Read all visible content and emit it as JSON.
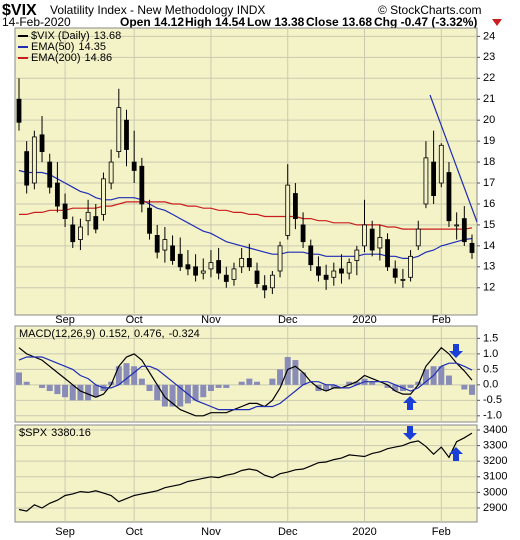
{
  "header": {
    "symbol": "$VIX",
    "name": "Volatility Index - New Methodology INDX",
    "date": "14-Feb-2020",
    "stats": [
      "Open 14.12",
      "High 14.54",
      "Low 13.38",
      "Close 13.68",
      "Chg -0.47 (-3.32%)"
    ],
    "credit": "© StockCharts.com"
  },
  "chart_data": [
    {
      "type": "candlestick",
      "legend": "upper left",
      "grid": true,
      "categories": [
        null,
        null,
        null,
        null,
        null,
        null,
        "Sep",
        null,
        null,
        null,
        null,
        null,
        null,
        null,
        null,
        "Oct",
        null,
        null,
        null,
        null,
        null,
        null,
        null,
        null,
        null,
        "Nov",
        null,
        null,
        null,
        null,
        null,
        null,
        null,
        null,
        null,
        "Dec",
        null,
        null,
        null,
        null,
        null,
        null,
        null,
        null,
        null,
        "2020",
        null,
        null,
        null,
        null,
        null,
        null,
        null,
        null,
        null,
        "Feb",
        null,
        null,
        null,
        null
      ],
      "name": "$VIX (Daily)",
      "legend_label": "13.68",
      "color": "#000000",
      "open": [
        21.0,
        18.5,
        17.0,
        19.3,
        18.0,
        17.0,
        16.0,
        15.0,
        14.3,
        15.2,
        15.4,
        15.5,
        17.0,
        18.5,
        20.0,
        18.0,
        17.8,
        15.8,
        14.5,
        13.8,
        14.0,
        13.6,
        13.1,
        13.0,
        12.7,
        12.9,
        13.3,
        12.6,
        12.4,
        13.0,
        13.4,
        12.8,
        12.1,
        12.0,
        12.8,
        14.5,
        16.5,
        15.0,
        14.0,
        13.0,
        12.6,
        12.5,
        12.9,
        12.7,
        13.3,
        14.0,
        14.8,
        13.9,
        14.3,
        12.9,
        12.4,
        12.5,
        14.0,
        16.0,
        18.0,
        17.0,
        17.5,
        15.0,
        15.3,
        14.12
      ],
      "high": [
        22.0,
        19.0,
        19.5,
        20.2,
        18.4,
        18.0,
        16.5,
        15.4,
        15.3,
        16.2,
        16.0,
        17.5,
        18.6,
        21.5,
        20.5,
        19.5,
        18.2,
        16.2,
        15.0,
        14.9,
        14.5,
        14.4,
        13.8,
        13.6,
        13.4,
        13.8,
        13.9,
        13.0,
        13.2,
        13.9,
        14.1,
        13.2,
        12.6,
        12.8,
        14.2,
        17.9,
        17.0,
        15.6,
        14.3,
        13.5,
        13.1,
        13.2,
        13.6,
        13.4,
        14.0,
        16.2,
        15.2,
        15.0,
        14.6,
        13.3,
        12.9,
        13.8,
        15.2,
        19.0,
        19.5,
        18.9,
        18.0,
        15.6,
        15.9,
        14.54
      ],
      "low": [
        19.5,
        16.5,
        16.7,
        18.0,
        16.5,
        15.6,
        14.9,
        13.9,
        13.8,
        14.5,
        14.6,
        15.2,
        16.7,
        18.2,
        17.8,
        17.0,
        15.6,
        14.3,
        13.4,
        13.2,
        13.1,
        12.8,
        12.6,
        12.3,
        12.4,
        12.5,
        12.4,
        12.0,
        12.1,
        12.7,
        12.8,
        12.0,
        11.5,
        11.7,
        12.5,
        14.3,
        14.8,
        13.9,
        12.8,
        12.3,
        11.9,
        12.1,
        12.2,
        12.4,
        12.6,
        13.7,
        13.5,
        13.3,
        12.8,
        12.2,
        12.0,
        12.3,
        13.8,
        15.8,
        16.0,
        16.8,
        14.9,
        14.3,
        14.0,
        13.38
      ],
      "close": [
        19.9,
        16.9,
        19.2,
        18.5,
        16.8,
        15.9,
        15.3,
        14.2,
        14.9,
        15.6,
        14.8,
        17.2,
        18.0,
        20.6,
        18.6,
        17.6,
        16.0,
        14.6,
        13.7,
        14.3,
        13.3,
        13.0,
        12.9,
        12.6,
        12.8,
        13.2,
        12.7,
        12.3,
        12.9,
        13.4,
        13.0,
        12.2,
        11.9,
        12.6,
        14.0,
        16.9,
        15.3,
        14.2,
        13.1,
        12.6,
        12.4,
        12.8,
        12.7,
        13.2,
        13.8,
        15.0,
        13.8,
        14.4,
        13.0,
        12.5,
        12.4,
        13.5,
        14.8,
        18.2,
        16.4,
        18.8,
        15.2,
        15.0,
        14.2,
        13.68
      ],
      "series": [
        {
          "name": "EMA(50)",
          "legend_label": "14.35",
          "color": "#1f2db4",
          "values": [
            17.6,
            17.5,
            17.5,
            17.5,
            17.4,
            17.2,
            17.0,
            16.8,
            16.6,
            16.5,
            16.3,
            16.2,
            16.2,
            16.3,
            16.3,
            16.3,
            16.2,
            16.0,
            15.8,
            15.7,
            15.5,
            15.3,
            15.1,
            14.9,
            14.7,
            14.6,
            14.4,
            14.2,
            14.1,
            14.0,
            13.9,
            13.8,
            13.7,
            13.6,
            13.6,
            13.7,
            13.7,
            13.7,
            13.6,
            13.6,
            13.5,
            13.5,
            13.5,
            13.5,
            13.5,
            13.6,
            13.6,
            13.6,
            13.5,
            13.5,
            13.4,
            13.4,
            13.5,
            13.7,
            13.8,
            14.0,
            14.1,
            14.2,
            14.3,
            14.35
          ]
        },
        {
          "name": "EMA(200)",
          "legend_label": "14.86",
          "color": "#c81e1e",
          "values": [
            15.5,
            15.5,
            15.6,
            15.6,
            15.7,
            15.7,
            15.7,
            15.8,
            15.8,
            15.8,
            15.8,
            15.9,
            15.9,
            16.0,
            16.1,
            16.1,
            16.1,
            16.1,
            16.1,
            16.1,
            16.0,
            16.0,
            15.9,
            15.9,
            15.8,
            15.8,
            15.7,
            15.7,
            15.6,
            15.6,
            15.5,
            15.5,
            15.4,
            15.4,
            15.4,
            15.4,
            15.4,
            15.3,
            15.3,
            15.2,
            15.2,
            15.1,
            15.1,
            15.1,
            15.0,
            15.0,
            15.0,
            15.0,
            14.9,
            14.9,
            14.8,
            14.8,
            14.8,
            14.8,
            14.8,
            14.8,
            14.8,
            14.8,
            14.8,
            14.86
          ]
        }
      ],
      "ylim": [
        10.7,
        24.4
      ],
      "yticks": [
        12,
        13,
        14,
        15,
        16,
        17,
        18,
        19,
        20,
        21,
        22,
        23,
        24
      ]
    },
    {
      "type": "line",
      "label": "MACD(12,26,9)",
      "grid": true,
      "series": [
        {
          "name": "MACD",
          "legend_label": "0.152,",
          "style": "line",
          "color": "#000000",
          "values": [
            1.2,
            1.0,
            0.9,
            0.8,
            0.6,
            0.4,
            0.2,
            0.0,
            -0.2,
            -0.3,
            -0.4,
            -0.3,
            0.0,
            0.6,
            0.9,
            1.0,
            0.8,
            0.4,
            0.0,
            -0.4,
            -0.6,
            -0.8,
            -0.9,
            -1.0,
            -1.0,
            -0.9,
            -0.9,
            -0.9,
            -0.8,
            -0.7,
            -0.6,
            -0.6,
            -0.7,
            -0.5,
            -0.1,
            0.5,
            0.6,
            0.4,
            0.1,
            -0.1,
            -0.2,
            -0.1,
            -0.1,
            0.0,
            0.1,
            0.3,
            0.2,
            0.1,
            0.0,
            -0.2,
            -0.3,
            -0.3,
            0.0,
            0.6,
            0.9,
            1.2,
            1.0,
            0.7,
            0.45,
            0.152
          ]
        },
        {
          "name": "Signal",
          "legend_label": "0.476,",
          "style": "line",
          "color": "#1f2db4",
          "values": [
            0.8,
            0.9,
            0.9,
            0.9,
            0.8,
            0.7,
            0.6,
            0.5,
            0.3,
            0.2,
            0.0,
            -0.1,
            -0.1,
            0.0,
            0.2,
            0.4,
            0.6,
            0.6,
            0.5,
            0.3,
            0.1,
            -0.1,
            -0.3,
            -0.5,
            -0.6,
            -0.7,
            -0.8,
            -0.8,
            -0.8,
            -0.8,
            -0.8,
            -0.7,
            -0.7,
            -0.7,
            -0.6,
            -0.4,
            -0.2,
            0.0,
            0.1,
            0.1,
            0.0,
            0.0,
            -0.1,
            -0.1,
            0.0,
            0.1,
            0.1,
            0.1,
            0.1,
            0.0,
            -0.1,
            -0.2,
            -0.1,
            0.1,
            0.3,
            0.6,
            0.7,
            0.7,
            0.6,
            0.476
          ]
        },
        {
          "name": "Histogram",
          "legend_label": "-0.324",
          "style": "bar",
          "color": "#8a8cb8",
          "values": [
            0.4,
            0.1,
            0.0,
            -0.1,
            -0.2,
            -0.3,
            -0.4,
            -0.5,
            -0.5,
            -0.5,
            -0.4,
            -0.2,
            0.1,
            0.6,
            0.7,
            0.6,
            0.2,
            -0.2,
            -0.5,
            -0.7,
            -0.7,
            -0.7,
            -0.6,
            -0.5,
            -0.4,
            -0.2,
            -0.1,
            -0.1,
            0.0,
            0.1,
            0.2,
            0.1,
            0.0,
            0.2,
            0.5,
            0.9,
            0.8,
            0.4,
            0.0,
            -0.2,
            -0.2,
            -0.1,
            0.0,
            0.1,
            0.1,
            0.2,
            0.1,
            0.0,
            -0.1,
            -0.2,
            -0.2,
            -0.1,
            0.1,
            0.5,
            0.6,
            0.6,
            0.3,
            0.0,
            -0.15,
            -0.324
          ]
        }
      ],
      "ylim": [
        -1.2,
        1.9
      ],
      "yticks": [
        1.5,
        {
          "value": 1.0,
          "label": "1.0"
        },
        0.5,
        {
          "value": 0.0,
          "label": "0.0"
        },
        -0.5,
        {
          "value": -1.0,
          "label": "-1.0"
        }
      ]
    },
    {
      "type": "line",
      "grid": true,
      "categories": [
        null,
        null,
        null,
        null,
        null,
        null,
        "Sep",
        null,
        null,
        null,
        null,
        null,
        null,
        null,
        null,
        "Oct",
        null,
        null,
        null,
        null,
        null,
        null,
        null,
        null,
        null,
        "Nov",
        null,
        null,
        null,
        null,
        null,
        null,
        null,
        null,
        null,
        "Dec",
        null,
        null,
        null,
        null,
        null,
        null,
        null,
        null,
        null,
        "2020",
        null,
        null,
        null,
        null,
        null,
        null,
        null,
        null,
        null,
        "Feb",
        null,
        null,
        null,
        null
      ],
      "series": [
        {
          "name": "$SPX",
          "legend_label": "3380.16",
          "style": "line",
          "color": "#000000",
          "values": [
            2890,
            2880,
            2920,
            2900,
            2930,
            2950,
            2980,
            2990,
            3005,
            3000,
            3010,
            2995,
            2980,
            2940,
            2960,
            2980,
            2990,
            3000,
            3010,
            3030,
            3040,
            3050,
            3070,
            3080,
            3090,
            3100,
            3095,
            3110,
            3120,
            3140,
            3150,
            3140,
            3110,
            3095,
            3120,
            3130,
            3145,
            3150,
            3170,
            3190,
            3195,
            3210,
            3220,
            3240,
            3235,
            3230,
            3250,
            3260,
            3280,
            3290,
            3300,
            3320,
            3330,
            3295,
            3245,
            3290,
            3225,
            3325,
            3350,
            3380.16
          ]
        }
      ],
      "ylim": [
        2810,
        3432
      ],
      "yticks": [
        2900,
        3000,
        3100,
        3200,
        3300,
        3400
      ]
    }
  ]
}
